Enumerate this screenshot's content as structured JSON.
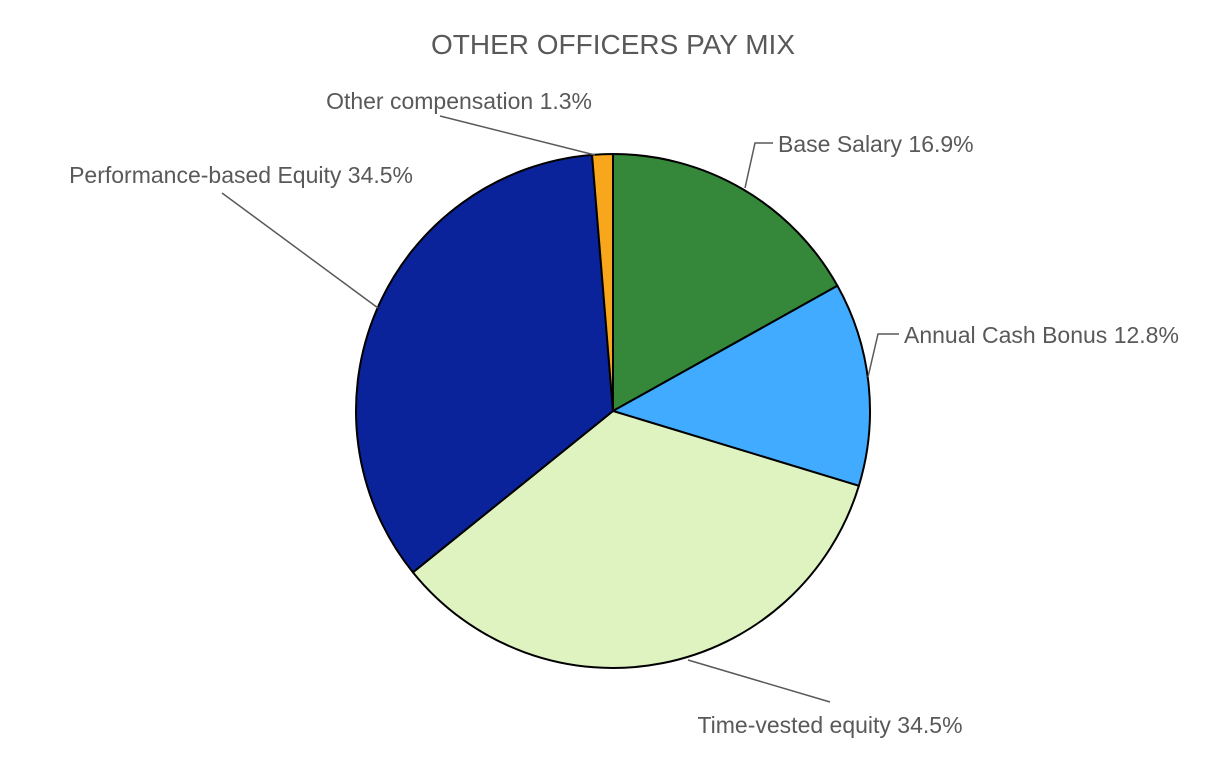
{
  "chart_data": {
    "type": "pie",
    "title": "OTHER OFFICERS PAY MIX",
    "slices": [
      {
        "name": "Base Salary",
        "value": 16.9,
        "label": "Base Salary 16.9%",
        "color": "#35873a"
      },
      {
        "name": "Annual Cash Bonus",
        "value": 12.8,
        "label": "Annual Cash Bonus 12.8%",
        "color": "#41abff"
      },
      {
        "name": "Time-vested equity",
        "value": 34.5,
        "label": "Time-vested equity 34.5%",
        "color": "#dff3c1"
      },
      {
        "name": "Performance-based Equity",
        "value": 34.5,
        "label": "Performance-based Equity 34.5%",
        "color": "#0a239a"
      },
      {
        "name": "Other compensation",
        "value": 1.3,
        "label": "Other compensation 1.3%",
        "color": "#f8a61c"
      }
    ],
    "start_angle": "12 o'clock",
    "direction": "clockwise",
    "legend": "none"
  }
}
